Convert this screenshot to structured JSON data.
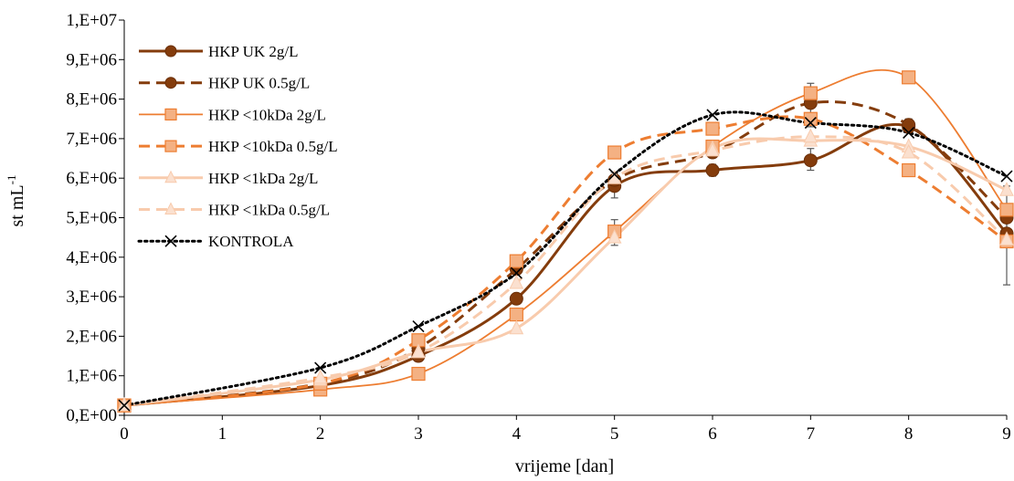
{
  "chart_data": {
    "type": "line",
    "title": "",
    "xlabel": "vrijeme [dan]",
    "ylabel_main": "st mL",
    "ylabel_sup": "-1",
    "x": [
      0,
      2,
      3,
      4,
      5,
      6,
      7,
      8,
      9
    ],
    "x_ticks": [
      0,
      1,
      2,
      3,
      4,
      5,
      6,
      7,
      8,
      9
    ],
    "x_tick_labels": [
      "0",
      "1",
      "2",
      "3",
      "4",
      "5",
      "6",
      "7",
      "8",
      "9"
    ],
    "xlim": [
      0,
      9
    ],
    "ylim": [
      0,
      10000000
    ],
    "y_ticks": [
      0,
      1000000,
      2000000,
      3000000,
      4000000,
      5000000,
      6000000,
      7000000,
      8000000,
      9000000,
      10000000
    ],
    "y_tick_labels": [
      "0,E+00",
      "1,E+06",
      "2,E+06",
      "3,E+06",
      "4,E+06",
      "5,E+06",
      "6,E+06",
      "7,E+06",
      "8,E+06",
      "9,E+06",
      "1,E+07"
    ],
    "grid": false,
    "legend_position": "top-left",
    "series": [
      {
        "name": "HKP UK 2g/L",
        "values": [
          250000,
          750000,
          1500000,
          2950000,
          5800000,
          6200000,
          6450000,
          7300000,
          4600000
        ],
        "color": "#843C0C",
        "dash": "solid",
        "width": 3,
        "marker": "circle"
      },
      {
        "name": "HKP UK 0.5g/L",
        "values": [
          250000,
          800000,
          1700000,
          3700000,
          5950000,
          6650000,
          7900000,
          7350000,
          5000000
        ],
        "color": "#843C0C",
        "dash": "dash",
        "width": 3,
        "marker": "circle"
      },
      {
        "name": "HKP <10kDa 2g/L",
        "values": [
          250000,
          650000,
          1050000,
          2550000,
          4650000,
          6800000,
          8150000,
          8550000,
          5200000
        ],
        "color": "#ED7D31",
        "dash": "solid",
        "width": 1.8,
        "marker": "square"
      },
      {
        "name": "HKP <10kDa 0.5g/L",
        "values": [
          250000,
          800000,
          1900000,
          3900000,
          6650000,
          7250000,
          7500000,
          6200000,
          4400000
        ],
        "color": "#ED7D31",
        "dash": "dash",
        "width": 3,
        "marker": "square"
      },
      {
        "name": "HKP <1kDa 2g/L",
        "values": [
          250000,
          900000,
          1600000,
          2200000,
          4500000,
          6750000,
          6950000,
          6800000,
          5700000
        ],
        "color": "#F8CBAD",
        "dash": "solid",
        "width": 3,
        "marker": "triangle"
      },
      {
        "name": "HKP <1kDa 0.5g/L",
        "values": [
          250000,
          950000,
          1600000,
          3350000,
          6000000,
          6700000,
          7050000,
          6650000,
          4450000
        ],
        "color": "#F8CBAD",
        "dash": "dash",
        "width": 3,
        "marker": "triangle"
      },
      {
        "name": "KONTROLA",
        "values": [
          250000,
          1200000,
          2250000,
          3600000,
          6100000,
          7600000,
          7400000,
          7150000,
          6050000
        ],
        "color": "#000000",
        "dash": "dot",
        "width": 3,
        "marker": "cross"
      }
    ],
    "error_bars": [
      {
        "x": 5,
        "low": 4300000,
        "high": 4950000
      },
      {
        "x": 5,
        "low": 5500000,
        "high": 6150000
      },
      {
        "x": 6,
        "low": 6050000,
        "high": 6350000
      },
      {
        "x": 7,
        "low": 6200000,
        "high": 6750000
      },
      {
        "x": 7,
        "low": 7300000,
        "high": 8400000
      },
      {
        "x": 8,
        "low": 7150000,
        "high": 7500000
      },
      {
        "x": 9,
        "low": 3300000,
        "high": 5800000
      },
      {
        "x": 9,
        "low": 4300000,
        "high": 5100000
      }
    ]
  }
}
